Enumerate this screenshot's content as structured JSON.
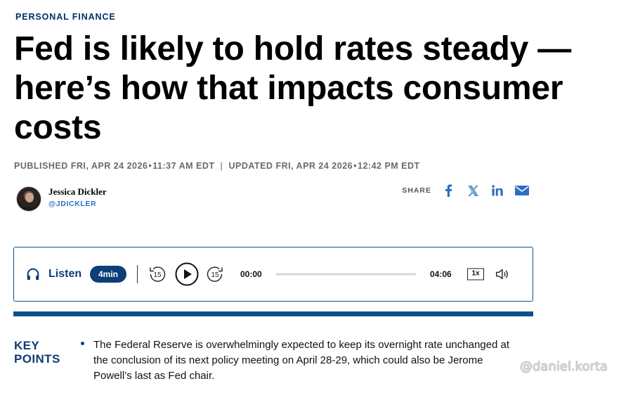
{
  "section": {
    "label": "PERSONAL FINANCE"
  },
  "headline": "Fed is likely to hold rates steady — here’s how that impacts consumer costs",
  "timestamps": {
    "published_label": "PUBLISHED",
    "published_date": "FRI, APR 24 2026",
    "published_time": "11:37 AM EDT",
    "separator": "|",
    "updated_label": "UPDATED",
    "updated_date": "FRI, APR 24 2026",
    "updated_time": "12:42 PM EDT"
  },
  "author": {
    "name": "Jessica Dickler",
    "handle": "@JDICKLER"
  },
  "share": {
    "label": "SHARE",
    "icons": [
      "facebook-icon",
      "x-icon",
      "linkedin-icon",
      "email-icon"
    ],
    "color": "#2c6ec1"
  },
  "player": {
    "listen_label": "Listen",
    "duration_badge": "4min",
    "rewind_seconds": "15",
    "forward_seconds": "15",
    "current_time": "00:00",
    "total_time": "04:06",
    "progress": 0,
    "speed": "1x",
    "accent": "#0d3e75",
    "border": "#0d4f8b"
  },
  "key_points": {
    "title": "KEY POINTS",
    "items": [
      "The Federal Reserve is overwhelmingly expected to keep its overnight rate unchanged at the conclusion of its next policy meeting on April 28-29, which could also be Jerome Powell’s last as Fed chair."
    ]
  },
  "watermark": "@daniel.korta"
}
